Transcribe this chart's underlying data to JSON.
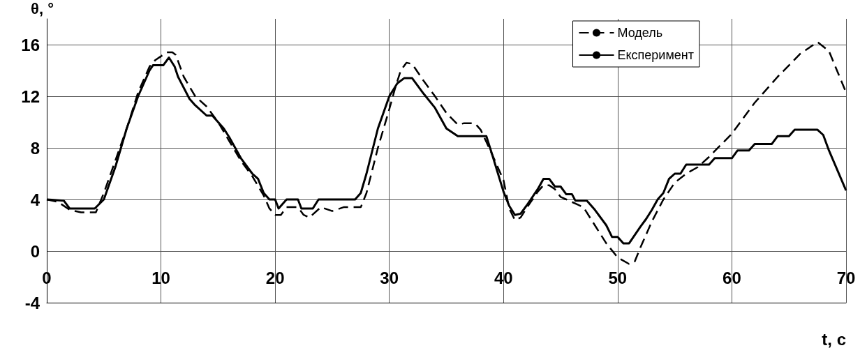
{
  "chart_data": {
    "type": "line",
    "xlabel": "t, c",
    "ylabel": "θ, °",
    "xlim": [
      0,
      70
    ],
    "xticks": [
      0,
      10,
      20,
      30,
      40,
      50,
      60,
      70
    ],
    "ylim": [
      -4,
      18
    ],
    "yticks": [
      -4,
      0,
      4,
      8,
      12,
      16
    ],
    "grid": true,
    "legend": "top right",
    "marker": "none",
    "series": [
      {
        "name": "Модель",
        "color": "#000000",
        "line_style": "dashed",
        "x": [
          0,
          1,
          2,
          3,
          4.3,
          5,
          6,
          7,
          8,
          9,
          9.5,
          10.5,
          11,
          11.3,
          12,
          13,
          14,
          15,
          16,
          17,
          18,
          19,
          19.5,
          20,
          20.5,
          21,
          22,
          22.5,
          23,
          24,
          25,
          26,
          27.5,
          28,
          29,
          30,
          30.5,
          31,
          31.5,
          32,
          33,
          34,
          35,
          36,
          36.5,
          37.5,
          38,
          39,
          40,
          40.5,
          41,
          41.5,
          42,
          43,
          43.5,
          44,
          44.5,
          45,
          46.5,
          47,
          48,
          49,
          50,
          51,
          51.5,
          52,
          53,
          54,
          55,
          56,
          57,
          58,
          60,
          62,
          64,
          66,
          67.5,
          68.5,
          70
        ],
        "values": [
          4,
          3.8,
          3.2,
          3,
          3,
          4.5,
          7,
          9.5,
          12.3,
          14.3,
          14.8,
          15.4,
          15.4,
          15.2,
          13.5,
          12,
          11.2,
          10,
          8.5,
          7,
          5.8,
          4.3,
          3.3,
          2.8,
          2.8,
          3.4,
          3.4,
          2.8,
          2.6,
          3.4,
          3.1,
          3.4,
          3.4,
          4.5,
          8,
          11,
          12.6,
          14,
          14.6,
          14.5,
          13.2,
          12,
          10.7,
          9.8,
          9.9,
          9.9,
          9.4,
          7.5,
          5.5,
          3.3,
          2.4,
          2.6,
          3.3,
          4.6,
          5.1,
          5.1,
          4.8,
          4.2,
          3.6,
          3.4,
          2,
          0.6,
          -0.5,
          -1,
          -0.8,
          0.3,
          2.3,
          4,
          5.3,
          6,
          6.5,
          7.3,
          9.1,
          11.5,
          13.5,
          15.3,
          16.2,
          15.5,
          12.3
        ]
      },
      {
        "name": "Експеримент",
        "color": "#000000",
        "line_style": "solid",
        "x": [
          0,
          1.5,
          2,
          4.2,
          5,
          6,
          6.5,
          7,
          8,
          8.5,
          9,
          9.3,
          10.2,
          10.7,
          11.2,
          11.5,
          12.5,
          13,
          14,
          14.5,
          15.5,
          16,
          17,
          18,
          18.5,
          19,
          19.5,
          20,
          20.3,
          21,
          22,
          22.3,
          23.3,
          23.8,
          27,
          27.5,
          28,
          29,
          30,
          30.7,
          31.3,
          32,
          33,
          34,
          35,
          36,
          38.5,
          39,
          40,
          40.5,
          41,
          41.5,
          42,
          43,
          43.5,
          44,
          44.5,
          45,
          45.5,
          46,
          46.3,
          47.3,
          48,
          49,
          49.5,
          50,
          50.5,
          51,
          52,
          52.5,
          53,
          53.5,
          54,
          54.5,
          55,
          55.5,
          56,
          58,
          58.5,
          60,
          60.5,
          61.5,
          62,
          63.5,
          64,
          65,
          65.5,
          67.5,
          68,
          68.5,
          70
        ],
        "values": [
          4,
          3.9,
          3.3,
          3.3,
          4,
          6.5,
          8,
          9.5,
          12,
          13,
          14,
          14.4,
          14.4,
          15,
          14.3,
          13.5,
          11.8,
          11.3,
          10.5,
          10.5,
          9.5,
          8.8,
          7.2,
          6,
          5.6,
          4.5,
          4,
          4,
          3.3,
          4,
          4,
          3.3,
          3.3,
          4,
          4,
          4.5,
          6,
          9.5,
          12,
          13,
          13.4,
          13.4,
          12.2,
          11.1,
          9.5,
          8.9,
          8.9,
          7.5,
          4.6,
          3.5,
          2.8,
          2.9,
          3.5,
          4.8,
          5.6,
          5.6,
          5,
          5,
          4.4,
          4.4,
          3.9,
          3.9,
          3.2,
          2,
          1.1,
          1.1,
          0.6,
          0.6,
          1.9,
          2.5,
          3.2,
          4,
          4.5,
          5.6,
          6,
          6,
          6.7,
          6.7,
          7.2,
          7.2,
          7.8,
          7.8,
          8.3,
          8.3,
          8.9,
          8.9,
          9.4,
          9.4,
          9,
          7.8,
          4.7
        ]
      }
    ]
  }
}
